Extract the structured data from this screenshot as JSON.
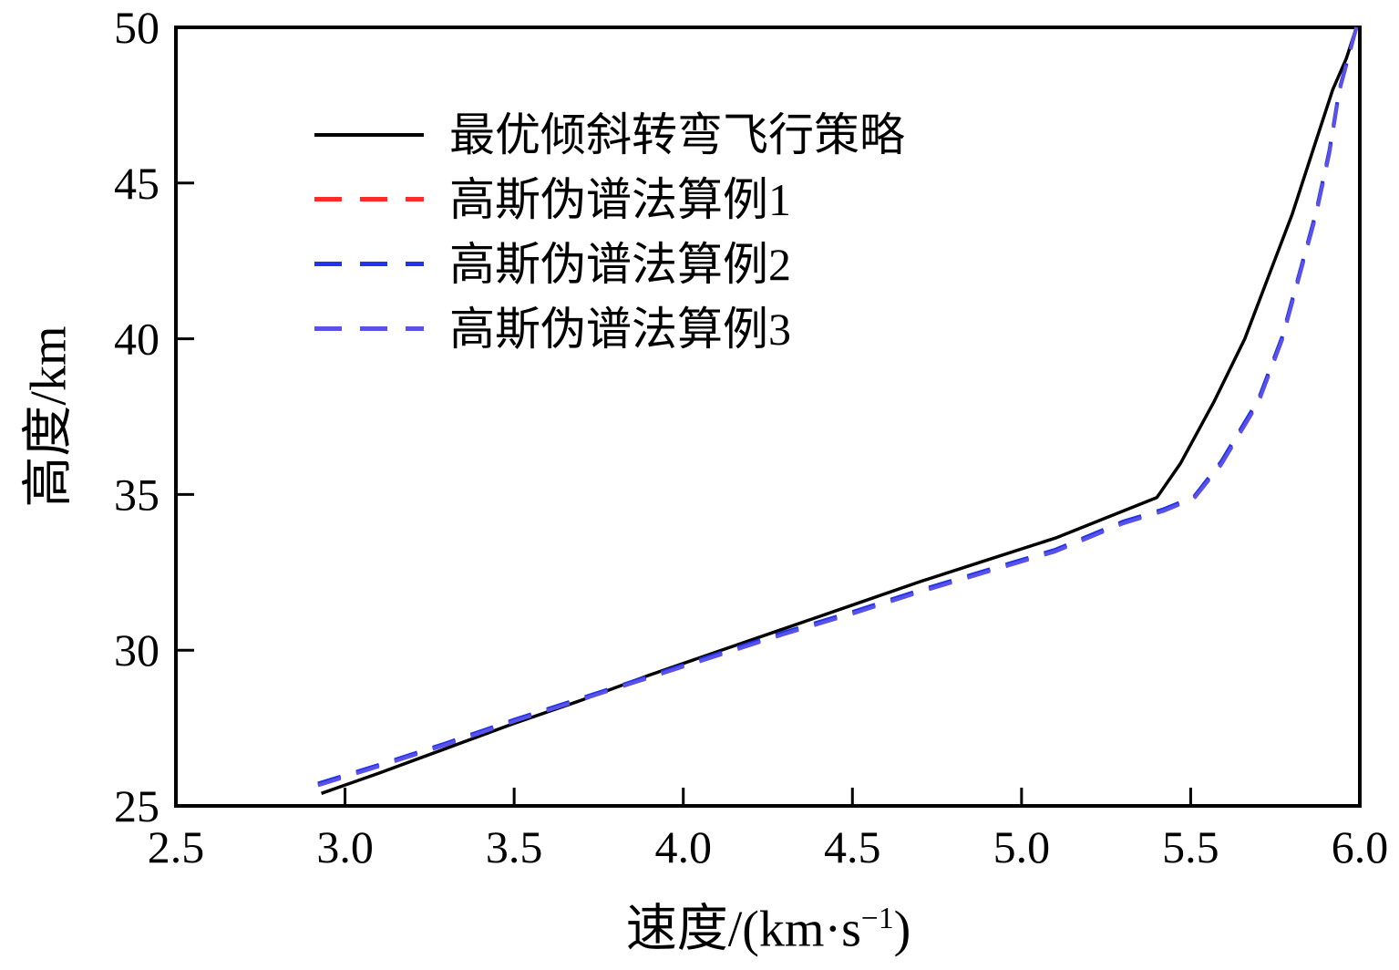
{
  "chart_data": {
    "type": "line",
    "title": "",
    "xlabel_prefix": "速度/(km·s",
    "xlabel_sup": "−1",
    "xlabel_suffix": ")",
    "ylabel": "高度/km",
    "xlim": [
      2.5,
      6.0
    ],
    "ylim": [
      25,
      50
    ],
    "x_ticks": [
      "2.5",
      "3.0",
      "3.5",
      "4.0",
      "4.5",
      "5.0",
      "5.5",
      "6.0"
    ],
    "y_ticks": [
      "25",
      "30",
      "35",
      "40",
      "45",
      "50"
    ],
    "grid": false,
    "legend_position": "upper-left-inside",
    "series": [
      {
        "name": "最优倾斜转弯飞行策略",
        "color": "#000000",
        "dash": "solid",
        "x": [
          2.93,
          3.1,
          3.3,
          3.5,
          3.7,
          3.9,
          4.1,
          4.3,
          4.5,
          4.7,
          4.9,
          5.1,
          5.25,
          5.4,
          5.47,
          5.57,
          5.66,
          5.73,
          5.8,
          5.86,
          5.92,
          5.96,
          5.99
        ],
        "y": [
          25.4,
          26.05,
          26.85,
          27.65,
          28.4,
          29.2,
          29.95,
          30.7,
          31.45,
          32.2,
          32.9,
          33.6,
          34.25,
          34.9,
          36.0,
          38.0,
          40.0,
          42.0,
          44.0,
          46.0,
          48.0,
          49.0,
          50.0
        ]
      },
      {
        "name": "高斯伪谱法算例1",
        "color": "#ff2a2a",
        "dash": "dashed",
        "x": [
          2.92,
          3.1,
          3.3,
          3.5,
          3.7,
          3.9,
          4.1,
          4.3,
          4.5,
          4.7,
          4.9,
          5.1,
          5.3,
          5.42,
          5.51,
          5.59,
          5.7,
          5.77,
          5.82,
          5.87,
          5.91,
          5.94,
          5.97,
          5.99
        ],
        "y": [
          25.7,
          26.3,
          27.0,
          27.75,
          28.45,
          29.15,
          29.85,
          30.55,
          31.2,
          31.9,
          32.55,
          33.2,
          34.1,
          34.5,
          34.9,
          36.0,
          38.0,
          40.0,
          42.0,
          44.0,
          46.0,
          48.0,
          49.2,
          50.0
        ]
      },
      {
        "name": "高斯伪谱法算例2",
        "color": "#2233ee",
        "dash": "dashed",
        "x": [
          2.92,
          3.1,
          3.3,
          3.5,
          3.7,
          3.9,
          4.1,
          4.3,
          4.5,
          4.7,
          4.9,
          5.1,
          5.3,
          5.42,
          5.51,
          5.59,
          5.7,
          5.77,
          5.82,
          5.87,
          5.91,
          5.94,
          5.97,
          5.99
        ],
        "y": [
          25.72,
          26.32,
          27.02,
          27.77,
          28.47,
          29.17,
          29.88,
          30.58,
          31.23,
          31.93,
          32.58,
          33.23,
          34.13,
          34.53,
          34.93,
          36.05,
          38.05,
          40.05,
          42.05,
          44.05,
          46.05,
          48.03,
          49.22,
          50.0
        ]
      },
      {
        "name": "高斯伪谱法算例3",
        "color": "#5a52e6",
        "dash": "dashed",
        "x": [
          2.92,
          3.1,
          3.3,
          3.5,
          3.7,
          3.9,
          4.1,
          4.3,
          4.5,
          4.7,
          4.9,
          5.1,
          5.3,
          5.42,
          5.51,
          5.59,
          5.7,
          5.77,
          5.82,
          5.87,
          5.91,
          5.94,
          5.97,
          5.99
        ],
        "y": [
          25.66,
          26.27,
          26.97,
          27.72,
          28.42,
          29.12,
          29.82,
          30.52,
          31.17,
          31.87,
          32.52,
          33.17,
          34.07,
          34.47,
          34.87,
          35.95,
          37.95,
          39.95,
          41.95,
          43.95,
          45.95,
          47.97,
          49.18,
          50.0
        ]
      }
    ]
  }
}
